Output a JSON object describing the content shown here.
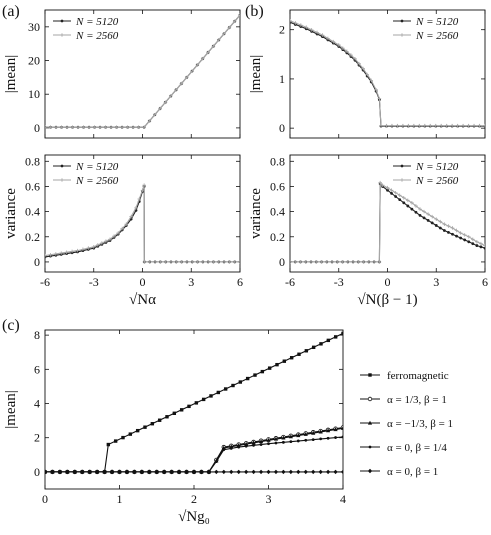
{
  "panel_labels": [
    "(a)",
    "(b)",
    "(c)"
  ],
  "colors": {
    "n5120": "#222222",
    "n2560": "#a6a6a6",
    "black": "#111111"
  },
  "chart_data": [
    {
      "id": "a_top",
      "type": "line",
      "ylabel": "|mean|",
      "xlabel": "",
      "xlim": [
        -6,
        6
      ],
      "ylim": [
        -3,
        35
      ],
      "xticks": [
        -6,
        -3,
        0,
        3,
        6
      ],
      "yticks": [
        0,
        10,
        20,
        30
      ],
      "show_xticklabels": false,
      "legend": {
        "position": "top-left",
        "entries": [
          "N = 5120",
          "N = 2560"
        ]
      },
      "series": [
        {
          "name": "N = 5120",
          "x": [
            -6,
            0.1,
            6
          ],
          "y": [
            0.2,
            0.2,
            33.5
          ]
        },
        {
          "name": "N = 2560",
          "x": [
            -6,
            0.1,
            6
          ],
          "y": [
            0.2,
            0.2,
            33.5
          ]
        }
      ]
    },
    {
      "id": "a_bottom",
      "type": "line",
      "ylabel": "variance",
      "xlabel": "√Nα",
      "xlim": [
        -6,
        6
      ],
      "ylim": [
        -0.08,
        0.85
      ],
      "xticks": [
        -6,
        -3,
        0,
        3,
        6
      ],
      "yticks": [
        0,
        0.2,
        0.4,
        0.6,
        0.8
      ],
      "show_xticklabels": true,
      "legend": {
        "position": "top-left",
        "entries": [
          "N = 5120",
          "N = 2560"
        ]
      },
      "series": [
        {
          "name": "N = 5120",
          "x": [
            -6,
            -5,
            -4,
            -3,
            -2.5,
            -2,
            -1.5,
            -1,
            -0.7,
            -0.4,
            -0.2,
            0,
            0.1,
            0.12,
            6
          ],
          "y": [
            0.04,
            0.06,
            0.08,
            0.11,
            0.14,
            0.17,
            0.22,
            0.29,
            0.34,
            0.41,
            0.48,
            0.56,
            0.6,
            0,
            0
          ]
        },
        {
          "name": "N = 2560",
          "x": [
            -6,
            -5,
            -4,
            -3,
            -2.5,
            -2,
            -1.5,
            -1,
            -0.7,
            -0.4,
            -0.2,
            0,
            0.1,
            0.12,
            6
          ],
          "y": [
            0.05,
            0.07,
            0.09,
            0.12,
            0.15,
            0.18,
            0.23,
            0.3,
            0.36,
            0.43,
            0.5,
            0.57,
            0.61,
            0,
            0
          ]
        }
      ]
    },
    {
      "id": "b_top",
      "type": "line",
      "ylabel": "|mean|",
      "xlabel": "",
      "xlim": [
        -6,
        6
      ],
      "ylim": [
        -0.2,
        2.4
      ],
      "xticks": [
        -6,
        -3,
        0,
        3,
        6
      ],
      "yticks": [
        0,
        1,
        2
      ],
      "show_xticklabels": false,
      "legend": {
        "position": "top-right",
        "entries": [
          "N = 5120",
          "N = 2560"
        ]
      },
      "series": [
        {
          "name": "N = 5120",
          "x": [
            -6,
            -5,
            -4,
            -3,
            -2.5,
            -2,
            -1.5,
            -1,
            -0.7,
            -0.5,
            -0.4,
            6
          ],
          "y": [
            2.15,
            2.02,
            1.86,
            1.66,
            1.53,
            1.38,
            1.18,
            0.94,
            0.75,
            0.58,
            0.04,
            0.04
          ]
        },
        {
          "name": "N = 2560",
          "x": [
            -6,
            -5,
            -4,
            -3,
            -2.5,
            -2,
            -1.5,
            -1,
            -0.7,
            -0.5,
            -0.4,
            6
          ],
          "y": [
            2.18,
            2.05,
            1.89,
            1.69,
            1.56,
            1.41,
            1.21,
            0.97,
            0.78,
            0.6,
            0.05,
            0.05
          ]
        }
      ]
    },
    {
      "id": "b_bottom",
      "type": "line",
      "ylabel": "variance",
      "xlabel": "√N(β − 1)",
      "xlim": [
        -6,
        6
      ],
      "ylim": [
        -0.08,
        0.85
      ],
      "xticks": [
        -6,
        -3,
        0,
        3,
        6
      ],
      "yticks": [
        0,
        0.2,
        0.4,
        0.6,
        0.8
      ],
      "show_xticklabels": true,
      "legend": {
        "position": "top-right",
        "entries": [
          "N = 5120",
          "N = 2560"
        ]
      },
      "series": [
        {
          "name": "N = 5120",
          "x": [
            -6,
            -0.5,
            -0.45,
            -0.3,
            0,
            0.5,
            1,
            1.5,
            2,
            2.5,
            3,
            3.5,
            4,
            4.5,
            5,
            5.5,
            6
          ],
          "y": [
            0,
            0,
            0.62,
            0.6,
            0.57,
            0.52,
            0.47,
            0.42,
            0.37,
            0.33,
            0.29,
            0.25,
            0.22,
            0.19,
            0.16,
            0.13,
            0.11
          ]
        },
        {
          "name": "N = 2560",
          "x": [
            -6,
            -0.5,
            -0.45,
            -0.3,
            0,
            0.5,
            1,
            1.5,
            2,
            2.5,
            3,
            3.5,
            4,
            4.5,
            5,
            5.5,
            6
          ],
          "y": [
            0,
            0,
            0.63,
            0.61,
            0.59,
            0.55,
            0.51,
            0.47,
            0.42,
            0.38,
            0.34,
            0.3,
            0.27,
            0.23,
            0.2,
            0.16,
            0.13
          ]
        }
      ]
    },
    {
      "id": "c",
      "type": "line",
      "ylabel": "|mean|",
      "xlabel": "√Ng₀",
      "xlim": [
        0,
        4
      ],
      "ylim": [
        -1,
        8.3
      ],
      "xticks": [
        0,
        1,
        2,
        3,
        4
      ],
      "yticks": [
        0,
        2,
        4,
        6,
        8
      ],
      "show_xticklabels": true,
      "legend": {
        "position": "right-outside",
        "entries": [
          "ferromagnetic",
          "α = 1/3,  β = 1",
          "α = −1/3,  β = 1",
          "α = 0,  β = 1/4",
          "α = 0,  β = 1"
        ]
      },
      "series": [
        {
          "name": "ferromagnetic",
          "x": [
            0,
            0.8,
            0.85,
            4
          ],
          "y": [
            0,
            0,
            1.6,
            8.1
          ]
        },
        {
          "name": "α = 1/3,  β = 1",
          "x": [
            0,
            2.2,
            2.3,
            2.4,
            2.6,
            3.0,
            3.5,
            4.0
          ],
          "y": [
            0,
            0,
            0.7,
            1.45,
            1.6,
            1.9,
            2.25,
            2.6
          ]
        },
        {
          "name": "α = −1/3,  β = 1",
          "x": [
            0,
            2.2,
            2.3,
            2.4,
            2.6,
            3.0,
            3.5,
            4.0
          ],
          "y": [
            0,
            0,
            0.65,
            1.4,
            1.55,
            1.85,
            2.2,
            2.55
          ]
        },
        {
          "name": "α = 0,  β = 1/4",
          "x": [
            0,
            2.2,
            2.3,
            2.4,
            2.6,
            3.0,
            3.5,
            4.0
          ],
          "y": [
            0,
            0,
            0.6,
            1.3,
            1.45,
            1.65,
            1.85,
            2.05
          ]
        },
        {
          "name": "α = 0,  β = 1",
          "x": [
            0,
            4
          ],
          "y": [
            0,
            0
          ]
        }
      ]
    }
  ]
}
